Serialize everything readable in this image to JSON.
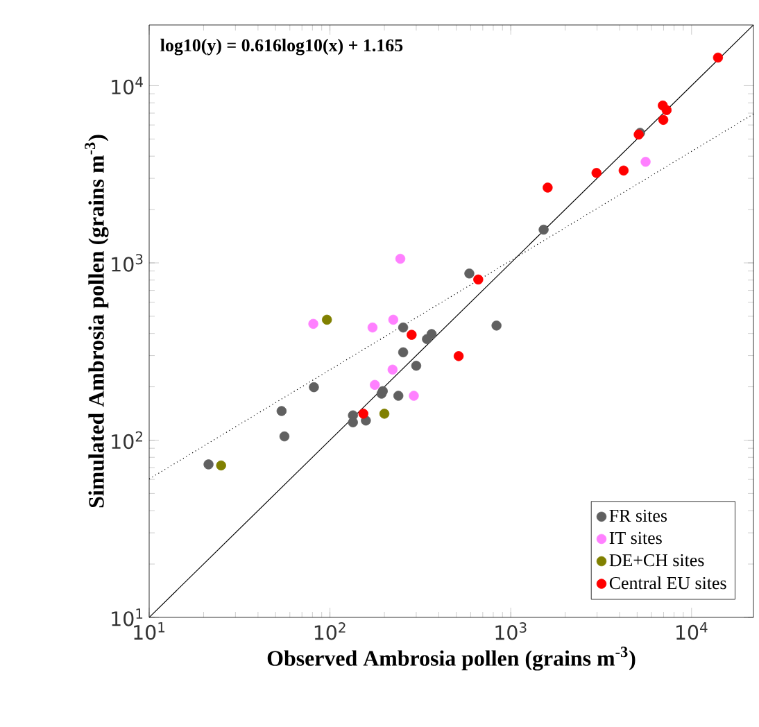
{
  "chart_data": {
    "type": "scatter",
    "xlabel": "Observed Ambrosia pollen (grains m$^{-3}$)",
    "ylabel": "Simulated Ambrosia pollen (grains m$^{-3}$)",
    "annotations": [
      "log10(y) = 0.616log10(x) + 1.165"
    ],
    "log": "xy",
    "xlim": [
      10,
      22000
    ],
    "ylim": [
      10,
      22000
    ],
    "xticks": [
      {
        "value": 10,
        "label": "10$^{1}$"
      },
      {
        "value": 100,
        "label": "10$^{2}$"
      },
      {
        "value": 1000,
        "label": "10$^{3}$"
      },
      {
        "value": 10000,
        "label": "10$^{4}$"
      }
    ],
    "yticks": [
      {
        "value": 10,
        "label": "10$^{1}$"
      },
      {
        "value": 100,
        "label": "10$^{2}$"
      },
      {
        "value": 1000,
        "label": "10$^{3}$"
      },
      {
        "value": 10000,
        "label": "10$^{4}$"
      }
    ],
    "legend": "bottom right",
    "series": [
      {
        "name": "FR sites",
        "marker": "circle",
        "color": "#606060",
        "x": [
          5190,
          1520,
          590,
          254,
          365,
          344,
          834,
          254,
          300,
          81.5,
          193,
          196,
          239,
          54,
          134,
          134,
          158,
          56,
          21.3
        ],
        "values": [
          5420,
          1540,
          871,
          432,
          397,
          372,
          443,
          313,
          263,
          199,
          183,
          189,
          178,
          146,
          138,
          126,
          129,
          105,
          73
        ]
      },
      {
        "name": "IT sites",
        "marker": "circle",
        "color": "#ff80ff",
        "x": [
          5570,
          245,
          80.9,
          172,
          224,
          222,
          177,
          291
        ],
        "values": [
          3720,
          1055,
          453,
          432,
          478,
          250,
          205,
          178
        ]
      },
      {
        "name": "DE+CH sites",
        "marker": "circle",
        "color": "#808000",
        "x": [
          96.2,
          200,
          25
        ],
        "values": [
          478,
          141,
          72
        ]
      },
      {
        "name": "Central EU sites",
        "marker": "circle",
        "color": "#ff0000",
        "x": [
          14000,
          6930,
          7280,
          6980,
          5100,
          2980,
          4210,
          1600,
          661,
          283,
          515,
          153
        ],
        "values": [
          14400,
          7730,
          7280,
          6410,
          5300,
          3220,
          3320,
          2660,
          806,
          393,
          298,
          141
        ]
      },
      {
        "type": "line",
        "marker": "none",
        "color": "#000000",
        "line_style": "solid",
        "x": [
          10,
          22000
        ],
        "values": [
          10,
          22000
        ]
      },
      {
        "type": "line",
        "marker": "none",
        "color": "#000000",
        "line_style": "dotted",
        "x": [
          10,
          22000
        ],
        "values": [
          60.4,
          6920
        ]
      }
    ]
  }
}
